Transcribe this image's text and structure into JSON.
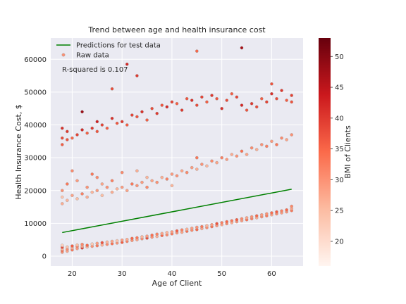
{
  "chart_data": {
    "type": "scatter",
    "title": "Trend between age and health insurance cost",
    "xlabel": "Age of Client",
    "ylabel": "Health Insurance Cost, $",
    "xlim": [
      15.7,
      66.3
    ],
    "ylim": [
      -3000,
      66500
    ],
    "xticks": [
      20,
      30,
      40,
      50,
      60
    ],
    "yticks": [
      0,
      10000,
      20000,
      30000,
      40000,
      50000,
      60000
    ],
    "grid": true,
    "legend": {
      "placement": "top-left",
      "entries": [
        "Predictions for test data",
        "Raw data"
      ]
    },
    "annotation": "R-squared is 0.107",
    "colorbar": {
      "label": "BMI of Clients",
      "range": [
        16,
        53
      ],
      "ticks": [
        20,
        25,
        30,
        35,
        40,
        45,
        50
      ],
      "colors": [
        "#fff5f0",
        "#fcbba1",
        "#fb6a4a",
        "#cb181d",
        "#67000d"
      ]
    },
    "series": [
      {
        "name": "Predictions for test data",
        "kind": "line",
        "color": "#008000",
        "x": [
          18,
          64
        ],
        "y": [
          7200,
          20400
        ]
      },
      {
        "name": "Raw data",
        "kind": "scatter",
        "color_map": "Reds",
        "points": [
          [
            18,
            1200,
            30
          ],
          [
            18,
            1700,
            34
          ],
          [
            18,
            2200,
            26
          ],
          [
            18,
            2700,
            38
          ],
          [
            18,
            3300,
            22
          ],
          [
            19,
            1500,
            28
          ],
          [
            19,
            2100,
            31
          ],
          [
            19,
            2800,
            24
          ],
          [
            20,
            1900,
            33
          ],
          [
            20,
            2500,
            27
          ],
          [
            20,
            3100,
            36
          ],
          [
            21,
            2300,
            29
          ],
          [
            21,
            2900,
            32
          ],
          [
            21,
            3400,
            25
          ],
          [
            22,
            2500,
            40
          ],
          [
            22,
            3000,
            28
          ],
          [
            22,
            3600,
            31
          ],
          [
            23,
            2800,
            26
          ],
          [
            23,
            3300,
            35
          ],
          [
            24,
            3000,
            30
          ],
          [
            24,
            3700,
            23
          ],
          [
            25,
            3200,
            33
          ],
          [
            25,
            3900,
            29
          ],
          [
            26,
            3400,
            27
          ],
          [
            26,
            4100,
            37
          ],
          [
            27,
            3600,
            31
          ],
          [
            27,
            4300,
            26
          ],
          [
            28,
            3800,
            34
          ],
          [
            28,
            4500,
            28
          ],
          [
            29,
            4000,
            30
          ],
          [
            29,
            4700,
            24
          ],
          [
            30,
            4200,
            36
          ],
          [
            30,
            4900,
            29
          ],
          [
            31,
            4500,
            32
          ],
          [
            31,
            5100,
            27
          ],
          [
            32,
            4800,
            30
          ],
          [
            32,
            5400,
            35
          ],
          [
            33,
            5000,
            28
          ],
          [
            33,
            5600,
            33
          ],
          [
            34,
            5300,
            31
          ],
          [
            34,
            5900,
            26
          ],
          [
            35,
            5500,
            38
          ],
          [
            35,
            6100,
            29
          ],
          [
            36,
            5800,
            30
          ],
          [
            36,
            6400,
            34
          ],
          [
            37,
            6000,
            27
          ],
          [
            37,
            6700,
            32
          ],
          [
            38,
            6300,
            35
          ],
          [
            38,
            6900,
            28
          ],
          [
            39,
            6500,
            31
          ],
          [
            39,
            7200,
            26
          ],
          [
            40,
            6800,
            33
          ],
          [
            40,
            7400,
            29
          ],
          [
            41,
            7100,
            30
          ],
          [
            41,
            7700,
            36
          ],
          [
            42,
            7300,
            28
          ],
          [
            42,
            8000,
            32
          ],
          [
            43,
            7600,
            34
          ],
          [
            43,
            8200,
            27
          ],
          [
            44,
            7900,
            31
          ],
          [
            44,
            8500,
            29
          ],
          [
            45,
            8100,
            35
          ],
          [
            45,
            8800,
            30
          ],
          [
            46,
            8400,
            28
          ],
          [
            46,
            9000,
            33
          ],
          [
            47,
            8700,
            31
          ],
          [
            47,
            9300,
            26
          ],
          [
            48,
            9000,
            34
          ],
          [
            48,
            9600,
            29
          ],
          [
            49,
            9300,
            30
          ],
          [
            49,
            9900,
            37
          ],
          [
            50,
            9600,
            28
          ],
          [
            50,
            10200,
            32
          ],
          [
            51,
            9900,
            31
          ],
          [
            51,
            10500,
            35
          ],
          [
            52,
            10200,
            27
          ],
          [
            52,
            10800,
            33
          ],
          [
            53,
            10500,
            30
          ],
          [
            53,
            11100,
            36
          ],
          [
            54,
            10800,
            29
          ],
          [
            54,
            11400,
            31
          ],
          [
            55,
            11100,
            34
          ],
          [
            55,
            11700,
            28
          ],
          [
            56,
            11400,
            32
          ],
          [
            56,
            12000,
            30
          ],
          [
            57,
            11700,
            27
          ],
          [
            57,
            12300,
            35
          ],
          [
            58,
            12000,
            31
          ],
          [
            58,
            12600,
            29
          ],
          [
            59,
            12300,
            33
          ],
          [
            59,
            12900,
            30
          ],
          [
            60,
            12600,
            28
          ],
          [
            60,
            13200,
            34
          ],
          [
            61,
            12900,
            31
          ],
          [
            61,
            13500,
            36
          ],
          [
            62,
            13200,
            29
          ],
          [
            62,
            13800,
            32
          ],
          [
            63,
            13500,
            30
          ],
          [
            63,
            14100,
            35
          ],
          [
            64,
            13900,
            33
          ],
          [
            64,
            14500,
            28
          ],
          [
            64,
            15200,
            31
          ],
          [
            18,
            16000,
            27
          ],
          [
            18,
            18000,
            24
          ],
          [
            18,
            20000,
            30
          ],
          [
            19,
            17000,
            26
          ],
          [
            19,
            22000,
            33
          ],
          [
            20,
            18500,
            28
          ],
          [
            20,
            26000,
            31
          ],
          [
            21,
            17500,
            25
          ],
          [
            21,
            23000,
            29
          ],
          [
            22,
            19000,
            32
          ],
          [
            23,
            18000,
            27
          ],
          [
            23,
            21000,
            30
          ],
          [
            24,
            19500,
            26
          ],
          [
            24,
            25000,
            33
          ],
          [
            25,
            20000,
            29
          ],
          [
            25,
            24000,
            31
          ],
          [
            26,
            18500,
            25
          ],
          [
            26,
            22000,
            28
          ],
          [
            27,
            21000,
            30
          ],
          [
            28,
            19500,
            27
          ],
          [
            28,
            23000,
            32
          ],
          [
            29,
            20500,
            26
          ],
          [
            30,
            21000,
            29
          ],
          [
            30,
            25500,
            31
          ],
          [
            31,
            20000,
            28
          ],
          [
            32,
            22000,
            33
          ],
          [
            33,
            21500,
            30
          ],
          [
            33,
            26000,
            27
          ],
          [
            34,
            22500,
            29
          ],
          [
            35,
            21000,
            31
          ],
          [
            35,
            24000,
            26
          ],
          [
            36,
            23000,
            28
          ],
          [
            37,
            22500,
            30
          ],
          [
            38,
            24000,
            27
          ],
          [
            39,
            23500,
            32
          ],
          [
            40,
            25000,
            29
          ],
          [
            40,
            21500,
            26
          ],
          [
            41,
            24500,
            30
          ],
          [
            42,
            26000,
            28
          ],
          [
            43,
            25500,
            31
          ],
          [
            44,
            27000,
            29
          ],
          [
            45,
            26500,
            27
          ],
          [
            45,
            30000,
            33
          ],
          [
            46,
            28000,
            30
          ],
          [
            47,
            27500,
            26
          ],
          [
            48,
            29000,
            31
          ],
          [
            49,
            28500,
            28
          ],
          [
            50,
            30000,
            32
          ],
          [
            51,
            29500,
            29
          ],
          [
            52,
            31000,
            27
          ],
          [
            53,
            30500,
            30
          ],
          [
            54,
            32000,
            34
          ],
          [
            55,
            31000,
            28
          ],
          [
            56,
            33000,
            31
          ],
          [
            57,
            32500,
            27
          ],
          [
            58,
            34000,
            30
          ],
          [
            59,
            33500,
            32
          ],
          [
            60,
            35000,
            29
          ],
          [
            61,
            34000,
            33
          ],
          [
            62,
            36000,
            31
          ],
          [
            63,
            35500,
            28
          ],
          [
            64,
            37000,
            30
          ],
          [
            18,
            34000,
            36
          ],
          [
            18,
            36000,
            38
          ],
          [
            18,
            39000,
            41
          ],
          [
            19,
            35500,
            37
          ],
          [
            19,
            38000,
            40
          ],
          [
            20,
            36000,
            35
          ],
          [
            21,
            37000,
            39
          ],
          [
            22,
            38500,
            42
          ],
          [
            22,
            44000,
            48
          ],
          [
            23,
            37500,
            36
          ],
          [
            24,
            39000,
            40
          ],
          [
            25,
            38000,
            37
          ],
          [
            25,
            41000,
            43
          ],
          [
            26,
            40000,
            39
          ],
          [
            27,
            39000,
            36
          ],
          [
            28,
            42000,
            41
          ],
          [
            28,
            51000,
            38
          ],
          [
            29,
            40500,
            37
          ],
          [
            30,
            41000,
            40
          ],
          [
            31,
            40000,
            36
          ],
          [
            31,
            58500,
            42
          ],
          [
            32,
            43000,
            39
          ],
          [
            33,
            42500,
            37
          ],
          [
            33,
            55000,
            40
          ],
          [
            34,
            44000,
            41
          ],
          [
            35,
            41500,
            36
          ],
          [
            36,
            45000,
            38
          ],
          [
            37,
            43500,
            40
          ],
          [
            38,
            46000,
            37
          ],
          [
            39,
            45500,
            42
          ],
          [
            40,
            47000,
            39
          ],
          [
            41,
            46500,
            36
          ],
          [
            42,
            44500,
            40
          ],
          [
            43,
            48000,
            37
          ],
          [
            44,
            47500,
            41
          ],
          [
            45,
            46000,
            38
          ],
          [
            45,
            62500,
            35
          ],
          [
            46,
            48500,
            39
          ],
          [
            47,
            47000,
            36
          ],
          [
            48,
            49000,
            40
          ],
          [
            49,
            48000,
            37
          ],
          [
            50,
            45000,
            41
          ],
          [
            51,
            47500,
            38
          ],
          [
            52,
            49500,
            36
          ],
          [
            53,
            48500,
            39
          ],
          [
            54,
            46000,
            42
          ],
          [
            54,
            63500,
            47
          ],
          [
            55,
            44500,
            37
          ],
          [
            56,
            46500,
            40
          ],
          [
            57,
            45500,
            38
          ],
          [
            58,
            48000,
            36
          ],
          [
            59,
            47000,
            39
          ],
          [
            60,
            49500,
            41
          ],
          [
            60,
            52500,
            37
          ],
          [
            61,
            48000,
            38
          ],
          [
            62,
            50500,
            40
          ],
          [
            63,
            47500,
            36
          ],
          [
            64,
            49000,
            39
          ],
          [
            64,
            47000,
            37
          ]
        ]
      }
    ]
  }
}
